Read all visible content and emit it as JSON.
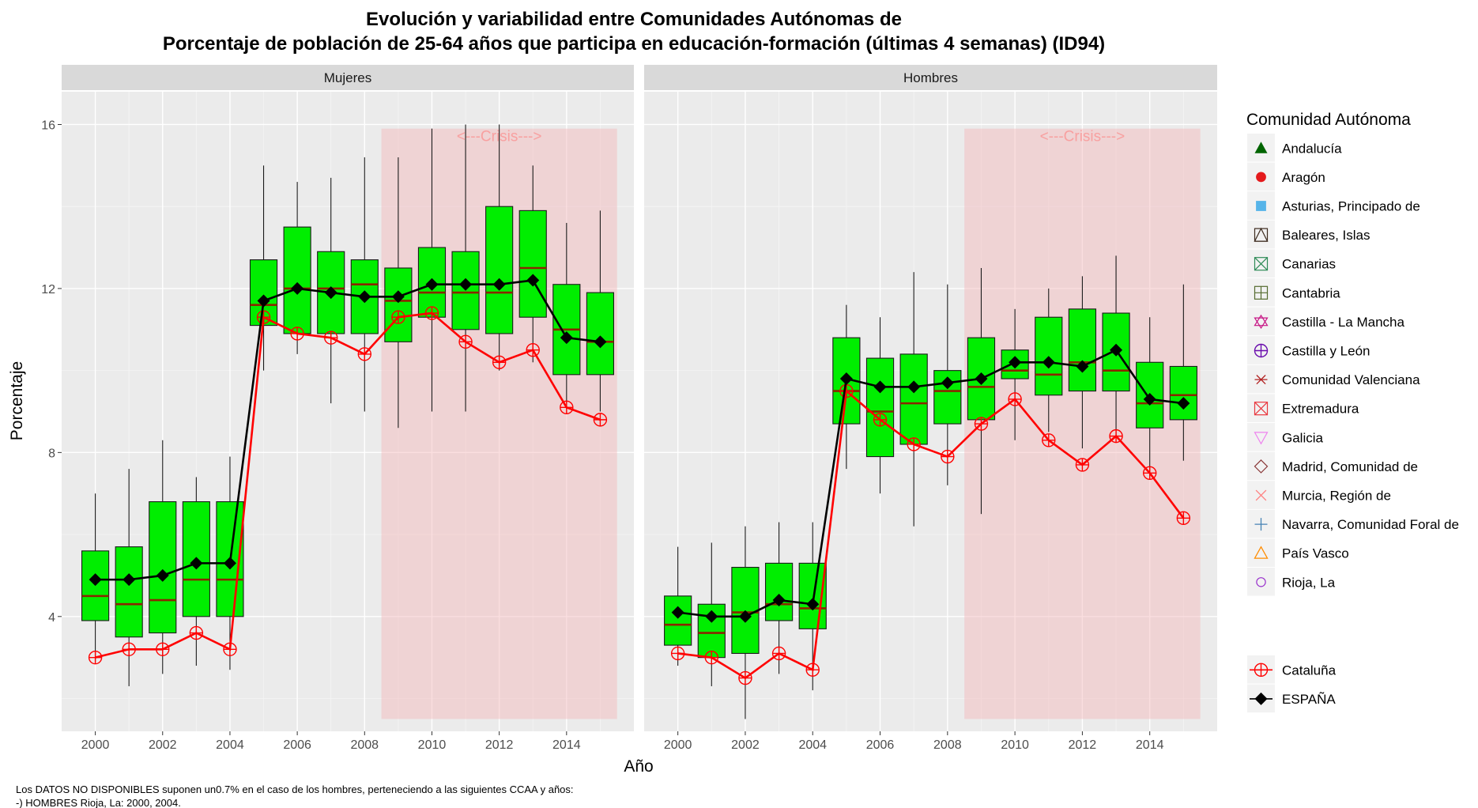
{
  "chart_data": {
    "type": "box",
    "title_line1": "Evolución y variabilidad entre Comunidades Autónomas de",
    "title_line2": "Porcentaje de población de 25-64 años que participa en educación-formación (últimas 4 semanas) (ID94)",
    "xlabel": "Año",
    "ylabel": "Porcentaje",
    "ylim": [
      1.2,
      16.8
    ],
    "xlim": [
      1999.0,
      2016.0
    ],
    "yticks": [
      4,
      8,
      12,
      16
    ],
    "yticks_label": [
      "4",
      "8",
      "12",
      "16"
    ],
    "xticks": [
      2000,
      2002,
      2004,
      2006,
      2008,
      2010,
      2012,
      2014
    ],
    "xticks_label": [
      "2000",
      "2002",
      "2004",
      "2006",
      "2008",
      "2010",
      "2012",
      "2014"
    ],
    "grid": true,
    "crisis_label": "<---Crisis--->",
    "crisis_range": [
      2008.5,
      2015.5
    ],
    "crisis_ylim": [
      1.5,
      15.9
    ],
    "legend_title": "Comunidad Autónoma",
    "legend_position": "right",
    "legend_ccaa": [
      {
        "name": "Andalucía",
        "shape": "triangle",
        "color": "#006400"
      },
      {
        "name": "Aragón",
        "shape": "circle",
        "color": "#e41a1c"
      },
      {
        "name": "Asturias, Principado de",
        "shape": "square",
        "color": "#56b4e9"
      },
      {
        "name": "Baleares, Islas",
        "shape": "square-triangle",
        "color": "#3d2b1f"
      },
      {
        "name": "Canarias",
        "shape": "square-x",
        "color": "#2e8b57"
      },
      {
        "name": "Cantabria",
        "shape": "square-plus",
        "color": "#556b2f"
      },
      {
        "name": "Castilla - La Mancha",
        "shape": "star-of-david",
        "color": "#c71585"
      },
      {
        "name": "Castilla y León",
        "shape": "circle-plus",
        "color": "#6a0dad"
      },
      {
        "name": "Comunidad Valenciana",
        "shape": "asterisk",
        "color": "#b22222"
      },
      {
        "name": "Extremadura",
        "shape": "square-x",
        "color": "#e9383f"
      },
      {
        "name": "Galicia",
        "shape": "triangle-down",
        "color": "#ee82ee"
      },
      {
        "name": "Madrid, Comunidad de",
        "shape": "diamond",
        "color": "#8b3a3a"
      },
      {
        "name": "Murcia, Región de",
        "shape": "x",
        "color": "#ff7f7f"
      },
      {
        "name": "Navarra, Comunidad Foral de",
        "shape": "plus",
        "color": "#4682b4"
      },
      {
        "name": "País Vasco",
        "shape": "triangle-open",
        "color": "#ff8c00"
      },
      {
        "name": "Rioja, La",
        "shape": "circle-open",
        "color": "#9932cc"
      }
    ],
    "legend_series": [
      {
        "name": "Cataluña",
        "shape": "circle-plus",
        "color": "#ff0000"
      },
      {
        "name": "ESPAÑA",
        "shape": "diamond-filled",
        "color": "#000000"
      }
    ],
    "note_line1": "Los DATOS NO DISPONIBLES suponen un0.7% en el caso de los hombres, perteneciendo a las siguientes CCAA y años:",
    "note_line2": "-) HOMBRES Rioja, La: 2000, 2004.",
    "panels": [
      {
        "name": "Mujeres",
        "years": [
          2000,
          2001,
          2002,
          2003,
          2004,
          2005,
          2006,
          2007,
          2008,
          2009,
          2010,
          2011,
          2012,
          2013,
          2014,
          2015
        ],
        "boxes": [
          {
            "lo": 2.9,
            "q1": 3.9,
            "med": 4.5,
            "q3": 5.6,
            "hi": 7.0
          },
          {
            "lo": 2.3,
            "q1": 3.5,
            "med": 4.3,
            "q3": 5.7,
            "hi": 7.6
          },
          {
            "lo": 2.6,
            "q1": 3.6,
            "med": 4.4,
            "q3": 6.8,
            "hi": 8.3
          },
          {
            "lo": 2.8,
            "q1": 4.0,
            "med": 4.9,
            "q3": 6.8,
            "hi": 7.4
          },
          {
            "lo": 2.7,
            "q1": 4.0,
            "med": 4.9,
            "q3": 6.8,
            "hi": 7.9
          },
          {
            "lo": 10.0,
            "q1": 11.1,
            "med": 11.6,
            "q3": 12.7,
            "hi": 15.0
          },
          {
            "lo": 10.4,
            "q1": 10.9,
            "med": 12.0,
            "q3": 13.5,
            "hi": 14.6
          },
          {
            "lo": 9.2,
            "q1": 10.9,
            "med": 12.0,
            "q3": 12.9,
            "hi": 14.7
          },
          {
            "lo": 9.0,
            "q1": 10.9,
            "med": 12.1,
            "q3": 12.7,
            "hi": 15.2
          },
          {
            "lo": 8.6,
            "q1": 10.7,
            "med": 11.7,
            "q3": 12.5,
            "hi": 15.2
          },
          {
            "lo": 9.0,
            "q1": 11.3,
            "med": 11.9,
            "q3": 13.0,
            "hi": 15.9
          },
          {
            "lo": 9.0,
            "q1": 11.0,
            "med": 11.9,
            "q3": 12.9,
            "hi": 16.0
          },
          {
            "lo": 10.0,
            "q1": 10.9,
            "med": 11.9,
            "q3": 14.0,
            "hi": 16.0
          },
          {
            "lo": 10.2,
            "q1": 11.3,
            "med": 12.5,
            "q3": 13.9,
            "hi": 15.0
          },
          {
            "lo": 9.2,
            "q1": 9.9,
            "med": 11.0,
            "q3": 12.1,
            "hi": 13.6
          },
          {
            "lo": 9.0,
            "q1": 9.9,
            "med": 10.7,
            "q3": 11.9,
            "hi": 13.9
          }
        ],
        "espana": [
          4.9,
          4.9,
          5.0,
          5.3,
          5.3,
          11.7,
          12.0,
          11.9,
          11.8,
          11.8,
          12.1,
          12.1,
          12.1,
          12.2,
          10.8,
          10.7
        ],
        "cataluna": [
          3.0,
          3.2,
          3.2,
          3.6,
          3.2,
          11.3,
          10.9,
          10.8,
          10.4,
          11.3,
          11.4,
          10.7,
          10.2,
          10.5,
          9.1,
          8.8
        ]
      },
      {
        "name": "Hombres",
        "years": [
          2000,
          2001,
          2002,
          2003,
          2004,
          2005,
          2006,
          2007,
          2008,
          2009,
          2010,
          2011,
          2012,
          2013,
          2014,
          2015
        ],
        "boxes": [
          {
            "lo": 2.8,
            "q1": 3.3,
            "med": 3.8,
            "q3": 4.5,
            "hi": 5.7
          },
          {
            "lo": 2.3,
            "q1": 3.0,
            "med": 3.6,
            "q3": 4.3,
            "hi": 5.8
          },
          {
            "lo": 1.5,
            "q1": 3.1,
            "med": 4.1,
            "q3": 5.2,
            "hi": 6.2
          },
          {
            "lo": 2.6,
            "q1": 3.9,
            "med": 4.3,
            "q3": 5.3,
            "hi": 6.3
          },
          {
            "lo": 2.2,
            "q1": 3.7,
            "med": 4.2,
            "q3": 5.3,
            "hi": 6.3
          },
          {
            "lo": 7.6,
            "q1": 8.7,
            "med": 9.5,
            "q3": 10.8,
            "hi": 11.6
          },
          {
            "lo": 7.0,
            "q1": 7.9,
            "med": 9.0,
            "q3": 10.3,
            "hi": 11.3
          },
          {
            "lo": 6.2,
            "q1": 8.2,
            "med": 9.2,
            "q3": 10.4,
            "hi": 12.4
          },
          {
            "lo": 7.2,
            "q1": 8.7,
            "med": 9.5,
            "q3": 10.0,
            "hi": 12.1
          },
          {
            "lo": 6.5,
            "q1": 8.8,
            "med": 9.6,
            "q3": 10.8,
            "hi": 12.5
          },
          {
            "lo": 8.3,
            "q1": 9.8,
            "med": 10.0,
            "q3": 10.5,
            "hi": 11.5
          },
          {
            "lo": 8.5,
            "q1": 9.4,
            "med": 9.9,
            "q3": 11.3,
            "hi": 12.0
          },
          {
            "lo": 8.1,
            "q1": 9.5,
            "med": 10.2,
            "q3": 11.5,
            "hi": 12.3
          },
          {
            "lo": 8.4,
            "q1": 9.5,
            "med": 10.0,
            "q3": 11.4,
            "hi": 12.8
          },
          {
            "lo": 7.5,
            "q1": 8.6,
            "med": 9.2,
            "q3": 10.2,
            "hi": 11.3
          },
          {
            "lo": 7.8,
            "q1": 8.8,
            "med": 9.4,
            "q3": 10.1,
            "hi": 12.1
          }
        ],
        "espana": [
          4.1,
          4.0,
          4.0,
          4.4,
          4.3,
          9.8,
          9.6,
          9.6,
          9.7,
          9.8,
          10.2,
          10.2,
          10.1,
          10.5,
          9.3,
          9.2
        ],
        "cataluna": [
          3.1,
          3.0,
          2.5,
          3.1,
          2.7,
          9.5,
          8.8,
          8.2,
          7.9,
          8.7,
          9.3,
          8.3,
          7.7,
          8.4,
          7.5,
          6.4
        ]
      }
    ]
  }
}
